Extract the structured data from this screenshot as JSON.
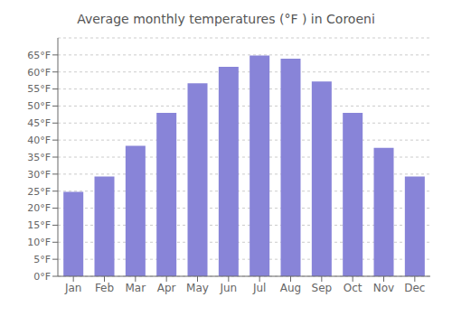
{
  "chart_data": {
    "type": "bar",
    "title": "Average monthly temperatures (°F ) in Coroeni",
    "categories": [
      "Jan",
      "Feb",
      "Mar",
      "Apr",
      "May",
      "Jun",
      "Jul",
      "Aug",
      "Sep",
      "Oct",
      "Nov",
      "Dec"
    ],
    "values": [
      24.8,
      29.3,
      38.3,
      48.0,
      56.7,
      61.5,
      64.8,
      63.9,
      57.2,
      48.0,
      37.7,
      29.3
    ],
    "color": "#8884d8",
    "ylim": [
      0,
      70
    ],
    "yticks": [
      {
        "value": 0,
        "label": "0°F"
      },
      {
        "value": 5,
        "label": "5°F"
      },
      {
        "value": 10,
        "label": "10°F"
      },
      {
        "value": 15,
        "label": "15°F"
      },
      {
        "value": 20,
        "label": "20°F"
      },
      {
        "value": 25,
        "label": "25°F"
      },
      {
        "value": 30,
        "label": "30°F"
      },
      {
        "value": 35,
        "label": "35°F"
      },
      {
        "value": 40,
        "label": "40°F"
      },
      {
        "value": 45,
        "label": "45°F"
      },
      {
        "value": 50,
        "label": "50°F"
      },
      {
        "value": 55,
        "label": "55°F"
      },
      {
        "value": 60,
        "label": "60°F"
      },
      {
        "value": 65,
        "label": "65°F"
      }
    ],
    "grid": true
  }
}
